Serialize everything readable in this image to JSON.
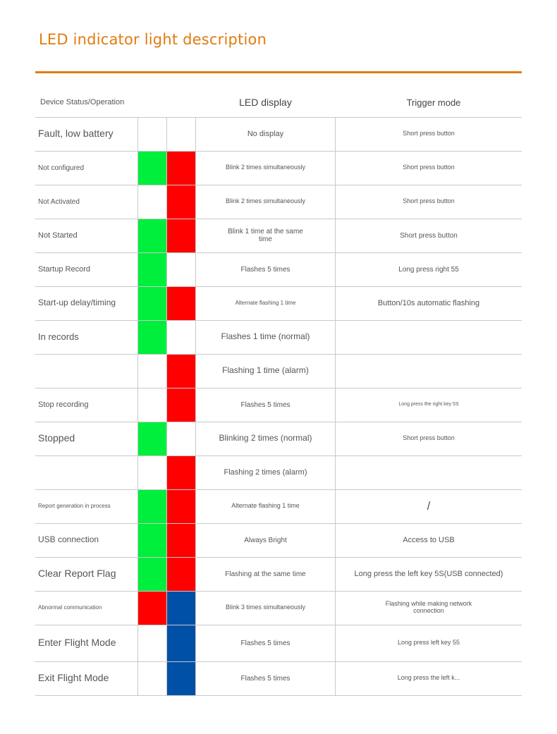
{
  "title": "LED indicator light description",
  "colors": {
    "accent": "#e07b10",
    "green": "#00ee3c",
    "red": "#ff0000",
    "blue": "#0050a8",
    "off": "#ffffff"
  },
  "header": {
    "status": "Device Status/Operation",
    "led_display": "LED display",
    "trigger_mode": "Trigger mode"
  },
  "rows": [
    {
      "status": "Fault, low battery",
      "led1": "off",
      "led2": "off",
      "display": "No display",
      "trigger": "Short press button"
    },
    {
      "status": "Not configured",
      "led1": "green",
      "led2": "red",
      "display": "Blink 2 times simultaneously",
      "trigger": "Short press button"
    },
    {
      "status": "Not Activated",
      "led1": "off",
      "led2": "red",
      "display": "Blink 2 times simultaneously",
      "trigger": "Short press button"
    },
    {
      "status": "Not Started",
      "led1": "green",
      "led2": "red",
      "display": "Blink 1 time at the same time",
      "trigger": "Short press button"
    },
    {
      "status": "Startup Record",
      "led1": "green",
      "led2": "off",
      "display": "Flashes 5 times",
      "trigger": "Long press right 55"
    },
    {
      "status": "Start-up delay/timing",
      "led1": "green",
      "led2": "red",
      "display": "Alternate flashing 1 time",
      "trigger": "Button/10s automatic flashing"
    },
    {
      "status": "In records",
      "led1": "green",
      "led2": "off",
      "display": "Flashes 1 time (normal)",
      "trigger": ""
    },
    {
      "status": "",
      "led1": "off",
      "led2": "red",
      "display": "Flashing 1 time (alarm)",
      "trigger": ""
    },
    {
      "status": "Stop recording",
      "led1": "off",
      "led2": "red",
      "display": "Flashes 5 times",
      "trigger": "Long press the right key 5S"
    },
    {
      "status": "Stopped",
      "led1": "green",
      "led2": "off",
      "display": "Blinking 2 times (normal)",
      "trigger": "Short press button"
    },
    {
      "status": "",
      "led1": "off",
      "led2": "red",
      "display": "Flashing 2 times (alarm)",
      "trigger": ""
    },
    {
      "status": "Report generation in process",
      "led1": "green",
      "led2": "red",
      "display": "Alternate flashing 1 time",
      "trigger": "/"
    },
    {
      "status": "USB connection",
      "led1": "green",
      "led2": "red",
      "display": "Always Bright",
      "trigger": "Access to USB"
    },
    {
      "status": "Clear Report Flag",
      "led1": "green",
      "led2": "red",
      "display": "Flashing at the same time",
      "trigger": "Long press the left key 5S(USB connected)"
    },
    {
      "status": "Abnormal communication",
      "led1": "red",
      "led2": "blue",
      "display": "Blink 3 times simultaneously",
      "trigger": "Flashing while making network connection"
    },
    {
      "status": "Enter Flight Mode",
      "led1": "off",
      "led2": "blue",
      "display": "Flashes 5 times",
      "trigger": "Long press left key 55"
    },
    {
      "status": "Exit Flight Mode",
      "led1": "off",
      "led2": "blue",
      "display": "Flashes 5 times",
      "trigger": "Long press the left k..."
    }
  ]
}
